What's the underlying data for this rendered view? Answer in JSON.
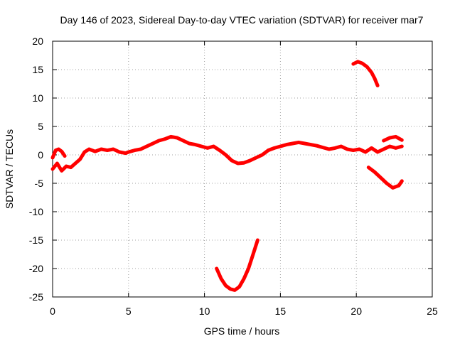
{
  "chart_data": {
    "type": "line",
    "title": "Day 146 of 2023, Sidereal Day-to-day VTEC variation (SDTVAR) for receiver mar7",
    "xlabel": "GPS time / hours",
    "ylabel": "SDTVAR / TECUs",
    "xlim": [
      0,
      25
    ],
    "ylim": [
      -25,
      20
    ],
    "xticks": [
      0,
      5,
      10,
      15,
      20,
      25
    ],
    "yticks": [
      20,
      15,
      10,
      5,
      0,
      -5,
      -10,
      -15,
      -20,
      -25
    ],
    "xtick_labels": [
      "0",
      "5",
      "10",
      "15",
      "20",
      "25"
    ],
    "ytick_labels": [
      "20",
      "15",
      "10",
      "5",
      "0",
      "-5",
      "-10",
      "-15",
      "-20",
      "-25"
    ],
    "grid": true,
    "series_color": "#ff0000",
    "series": [
      {
        "name": "main track",
        "x": [
          0.0,
          0.3,
          0.6,
          0.9,
          1.2,
          1.5,
          1.8,
          2.1,
          2.4,
          2.8,
          3.2,
          3.6,
          4.0,
          4.4,
          4.8,
          5.0,
          5.4,
          5.8,
          6.2,
          6.6,
          7.0,
          7.4,
          7.8,
          8.2,
          8.6,
          9.0,
          9.4,
          9.8,
          10.2,
          10.6,
          11.0,
          11.4,
          11.8,
          12.2,
          12.6,
          13.0,
          13.4,
          13.8,
          14.2,
          14.6,
          15.0,
          15.4,
          15.8,
          16.2,
          16.6,
          17.0,
          17.4,
          17.8,
          18.2,
          18.6,
          19.0,
          19.4,
          19.8,
          20.2,
          20.6,
          21.0,
          21.4,
          21.8,
          22.2,
          22.6,
          23.0
        ],
        "y": [
          -2.5,
          -1.5,
          -2.8,
          -2.0,
          -2.2,
          -1.5,
          -0.8,
          0.5,
          1.0,
          0.6,
          1.0,
          0.8,
          1.0,
          0.5,
          0.3,
          0.5,
          0.8,
          1.0,
          1.5,
          2.0,
          2.5,
          2.8,
          3.2,
          3.0,
          2.5,
          2.0,
          1.8,
          1.5,
          1.2,
          1.5,
          0.8,
          0.0,
          -1.0,
          -1.5,
          -1.4,
          -1.0,
          -0.5,
          0.0,
          0.8,
          1.2,
          1.5,
          1.8,
          2.0,
          2.2,
          2.0,
          1.8,
          1.6,
          1.3,
          1.0,
          1.2,
          1.5,
          1.0,
          0.8,
          1.0,
          0.5,
          1.2,
          0.5,
          1.0,
          1.5,
          1.2,
          1.5
        ]
      },
      {
        "name": "upper branch near 0 h",
        "x": [
          0.0,
          0.2,
          0.4,
          0.6,
          0.8
        ],
        "y": [
          -0.5,
          0.8,
          1.0,
          0.6,
          -0.2
        ]
      },
      {
        "name": "upper branch 22-23 h",
        "x": [
          21.8,
          22.2,
          22.6,
          23.0
        ],
        "y": [
          2.5,
          3.0,
          3.2,
          2.6
        ]
      },
      {
        "name": "negative arc 11-13.5 h",
        "x": [
          10.8,
          11.1,
          11.4,
          11.7,
          12.0,
          12.3,
          12.6,
          12.9,
          13.2,
          13.5
        ],
        "y": [
          -20.0,
          -21.8,
          -23.0,
          -23.6,
          -23.8,
          -23.2,
          -21.8,
          -20.0,
          -17.5,
          -15.0
        ]
      },
      {
        "name": "positive arc 19.8-21.4 h",
        "x": [
          19.8,
          20.1,
          20.4,
          20.7,
          21.0,
          21.2,
          21.4
        ],
        "y": [
          16.0,
          16.4,
          16.1,
          15.5,
          14.5,
          13.5,
          12.2
        ]
      },
      {
        "name": "negative arc 20.8-23 h",
        "x": [
          20.8,
          21.2,
          21.6,
          22.0,
          22.4,
          22.8,
          23.0
        ],
        "y": [
          -2.2,
          -3.0,
          -4.0,
          -5.0,
          -5.8,
          -5.4,
          -4.6
        ]
      }
    ]
  }
}
